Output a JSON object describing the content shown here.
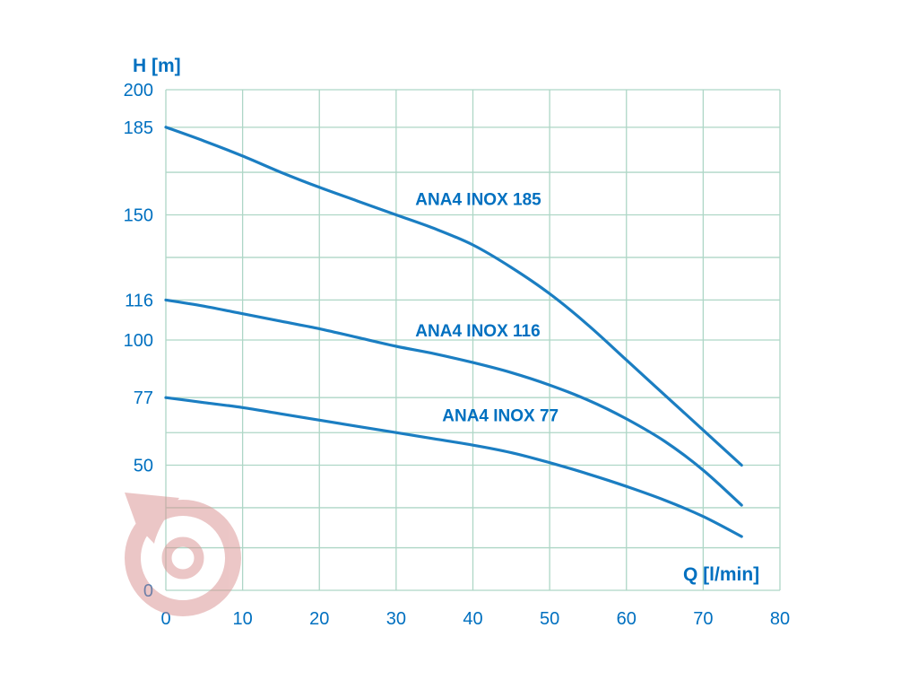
{
  "chart_data": {
    "type": "line",
    "title": "",
    "xlabel": "Q [l/min]",
    "ylabel": "H [m]",
    "xlim": [
      0,
      80
    ],
    "ylim": [
      0,
      200
    ],
    "grid": true,
    "legend_position": "inline-labels",
    "xticks": [
      0,
      10,
      20,
      30,
      40,
      50,
      60,
      70,
      80
    ],
    "yticks": [
      200,
      185,
      150,
      116,
      100,
      77,
      50,
      0
    ],
    "grid_h_values": [
      0,
      17,
      33,
      50,
      63,
      77,
      100,
      116,
      133,
      150,
      167,
      185,
      200
    ],
    "grid_v_values": [
      0,
      10,
      20,
      30,
      40,
      50,
      60,
      70,
      80
    ],
    "series": [
      {
        "name": "ANA4 INOX 185",
        "label_pos": {
          "q": 32.5,
          "h": 154
        },
        "points": [
          [
            0,
            185
          ],
          [
            5,
            179.5
          ],
          [
            10,
            173.5
          ],
          [
            15,
            167
          ],
          [
            20,
            161
          ],
          [
            25,
            155.5
          ],
          [
            30,
            150
          ],
          [
            35,
            144.5
          ],
          [
            40,
            138
          ],
          [
            45,
            129
          ],
          [
            50,
            118.5
          ],
          [
            55,
            106
          ],
          [
            60,
            92
          ],
          [
            65,
            78
          ],
          [
            70,
            64
          ],
          [
            75,
            50
          ]
        ]
      },
      {
        "name": "ANA4 INOX 116",
        "label_pos": {
          "q": 32.5,
          "h": 101.5
        },
        "points": [
          [
            0,
            116
          ],
          [
            5,
            113.5
          ],
          [
            10,
            110.5
          ],
          [
            15,
            107.5
          ],
          [
            20,
            104.5
          ],
          [
            25,
            101
          ],
          [
            30,
            97.5
          ],
          [
            35,
            94.5
          ],
          [
            40,
            91
          ],
          [
            45,
            87
          ],
          [
            50,
            82
          ],
          [
            55,
            76
          ],
          [
            60,
            68.5
          ],
          [
            65,
            59.5
          ],
          [
            70,
            48
          ],
          [
            75,
            34
          ]
        ]
      },
      {
        "name": "ANA4 INOX 77",
        "label_pos": {
          "q": 36,
          "h": 67.5
        },
        "points": [
          [
            0,
            77
          ],
          [
            5,
            75
          ],
          [
            10,
            73
          ],
          [
            15,
            70.5
          ],
          [
            20,
            68
          ],
          [
            25,
            65.5
          ],
          [
            30,
            63
          ],
          [
            35,
            60.5
          ],
          [
            40,
            58
          ],
          [
            45,
            55
          ],
          [
            50,
            51
          ],
          [
            55,
            46.5
          ],
          [
            60,
            41.5
          ],
          [
            65,
            36
          ],
          [
            70,
            29.5
          ],
          [
            75,
            21.5
          ]
        ]
      }
    ],
    "colors": {
      "curve": "#1b7ec2",
      "text": "#0070c0",
      "grid": "#aed6c6",
      "watermark": "#d98f8f",
      "background": "#ffffff"
    }
  }
}
